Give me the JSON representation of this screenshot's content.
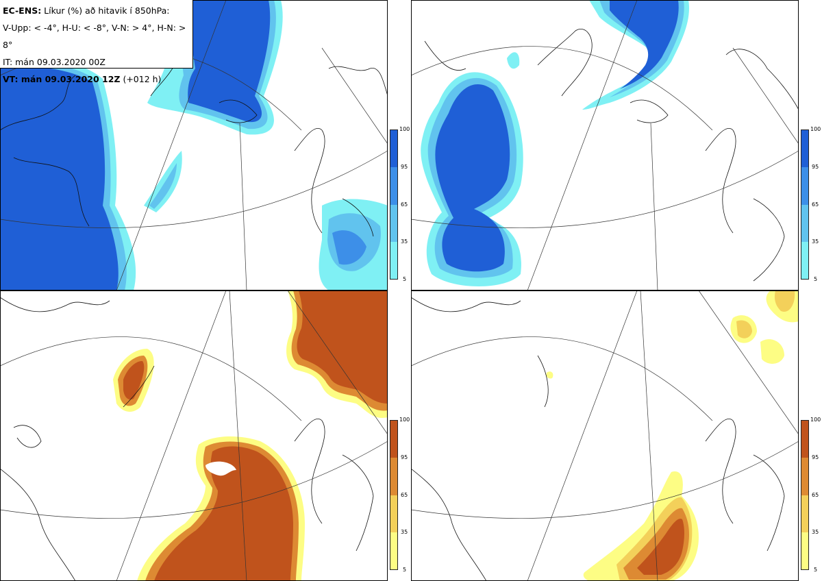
{
  "header": {
    "line1_bold": "EC-ENS:",
    "line1_rest": " Líkur (%) að hitavik í 850hPa:",
    "line2": "V-Upp: < -4°, H-U: < -8°, V-N: > 4°, H-N: > 8°",
    "line3": "IT: mán 09.03.2020 00Z",
    "line4_bold": "VT: mán 09.03.2020 12Z",
    "line4_rest": " (+012 h)"
  },
  "colorbars": {
    "cold": {
      "ticks": [
        "100",
        "95",
        "65",
        "35",
        "5"
      ],
      "colors": [
        "#1f5fd6",
        "#3d8fe8",
        "#61c3ee",
        "#7ff0f4"
      ]
    },
    "warm": {
      "ticks": [
        "100",
        "95",
        "65",
        "35",
        "5"
      ],
      "colors": [
        "#c0531c",
        "#dd8a33",
        "#f3d05a",
        "#fdfd84"
      ]
    }
  },
  "panels": [
    {
      "id": "V-Upp",
      "colorbar": "cold"
    },
    {
      "id": "H-U",
      "colorbar": "cold"
    },
    {
      "id": "V-N",
      "colorbar": "warm"
    },
    {
      "id": "H-N",
      "colorbar": "warm"
    }
  ]
}
